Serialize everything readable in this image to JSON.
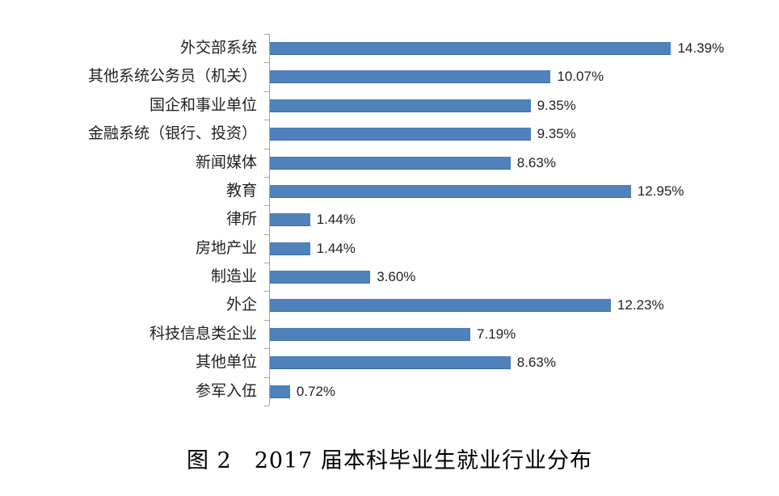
{
  "caption": "图 2　2017 届本科毕业生就业行业分布",
  "colors": {
    "bar": "#4f81bd",
    "axis": "#a6a6a6",
    "text": "#222222"
  },
  "chart_data": {
    "type": "bar",
    "orientation": "horizontal",
    "title": "图 2　2017 届本科毕业生就业行业分布",
    "xlabel": "",
    "ylabel": "",
    "grid": false,
    "legend": null,
    "categories": [
      "外交部系统",
      "其他系统公务员（机关）",
      "国企和事业单位",
      "金融系统（银行、投资）",
      "新闻媒体",
      "教育",
      "律所",
      "房地产业",
      "制造业",
      "外企",
      "科技信息类企业",
      "其他单位",
      "参军入伍"
    ],
    "values": [
      14.39,
      10.07,
      9.35,
      9.35,
      8.63,
      12.95,
      1.44,
      1.44,
      3.6,
      12.23,
      7.19,
      8.63,
      0.72
    ],
    "value_labels": [
      "14.39%",
      "10.07%",
      "9.35%",
      "9.35%",
      "8.63%",
      "12.95%",
      "1.44%",
      "1.44%",
      "3.60%",
      "12.23%",
      "7.19%",
      "8.63%",
      "0.72%"
    ],
    "unit": "%",
    "xlim": [
      0,
      16
    ]
  }
}
